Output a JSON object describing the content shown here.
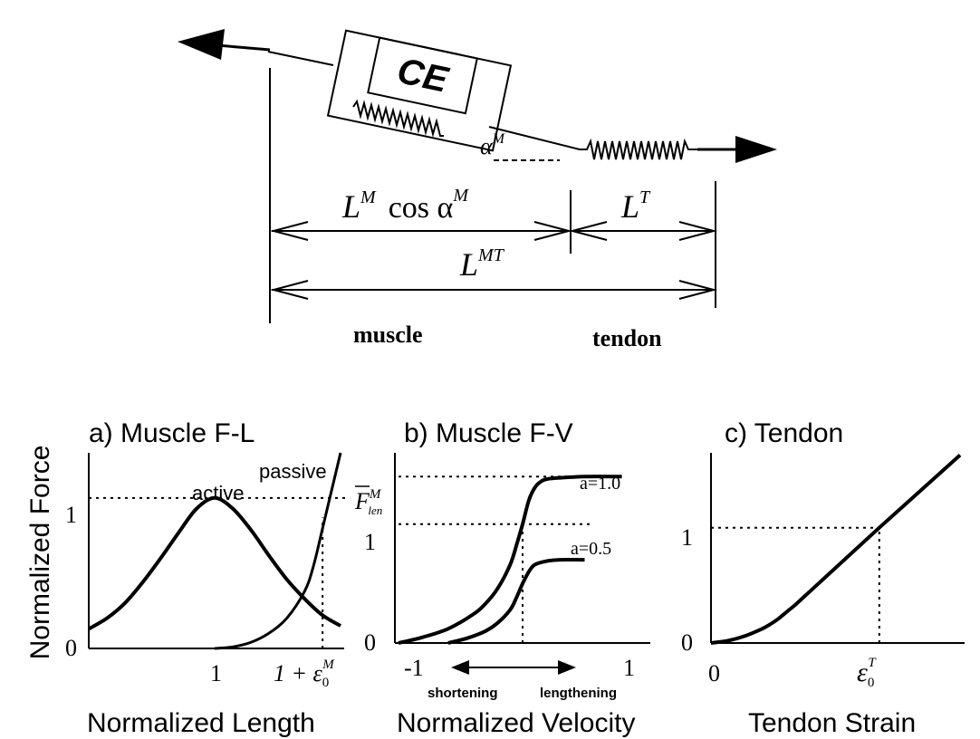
{
  "schematic": {
    "ce_label": "CE",
    "pennation_symbol": "α",
    "pennation_sup": "M",
    "fiber_length_label": "L",
    "fiber_length_sup": "M",
    "fiber_length_cos": "cos α",
    "fiber_length_cos_sup": "M",
    "tendon_length_label": "L",
    "tendon_length_sup": "T",
    "total_length_label": "L",
    "total_length_sup": "MT",
    "muscle_label": "muscle",
    "tendon_label": "tendon"
  },
  "panels": {
    "fl": {
      "title": "a) Muscle F-L",
      "ylabel": "Normalized Force",
      "xlabel": "Normalized Length",
      "ytick_0": "0",
      "ytick_1": "1",
      "xtick_1": "1",
      "xtick_eps_prefix": "1 + ε",
      "xtick_eps_sub": "0",
      "xtick_eps_sup": "M",
      "active_label": "active",
      "passive_label": "passive"
    },
    "fv": {
      "title": "b) Muscle F-V",
      "xlabel": "Normalized Velocity",
      "ytick_0": "0",
      "ytick_1": "1",
      "ytick_flen": "F",
      "ytick_flen_sup": "M",
      "ytick_flen_sub": "len",
      "xtick_neg1": "-1",
      "xtick_1": "1",
      "curve_a1": "a=1.0",
      "curve_a05": "a=0.5",
      "shortening": "shortening",
      "lengthening": "lengthening"
    },
    "tendon": {
      "title": "c) Tendon",
      "xlabel": "Tendon Strain",
      "ytick_0": "0",
      "ytick_1": "1",
      "xtick_0": "0",
      "xtick_eps": "ε",
      "xtick_eps_sub": "0",
      "xtick_eps_sup": "T"
    }
  },
  "chart_data": [
    {
      "type": "line",
      "title": "a) Muscle F-L",
      "xlabel": "Normalized Length",
      "ylabel": "Normalized Force",
      "xlim": [
        0.3,
        1.72
      ],
      "ylim": [
        0,
        1.3
      ],
      "ref_y": 1,
      "ref_x": 1.6,
      "series": [
        {
          "name": "active",
          "x": [
            0.3,
            0.4,
            0.5,
            0.6,
            0.7,
            0.8,
            0.9,
            1.0,
            1.1,
            1.2,
            1.3,
            1.4,
            1.5,
            1.6,
            1.7
          ],
          "y": [
            0.13,
            0.2,
            0.3,
            0.44,
            0.6,
            0.77,
            0.93,
            1.0,
            0.93,
            0.79,
            0.62,
            0.46,
            0.33,
            0.22,
            0.15
          ]
        },
        {
          "name": "passive",
          "x": [
            1.0,
            1.1,
            1.2,
            1.3,
            1.4,
            1.5,
            1.55,
            1.6,
            1.65,
            1.7
          ],
          "y": [
            0.0,
            0.01,
            0.04,
            0.1,
            0.2,
            0.38,
            0.55,
            0.8,
            1.05,
            1.3
          ]
        }
      ]
    },
    {
      "type": "line",
      "title": "b) Muscle F-V",
      "xlabel": "Normalized Velocity",
      "xlim": [
        -1,
        1
      ],
      "ylim": [
        0,
        1.6
      ],
      "ref_y": [
        1,
        1.4
      ],
      "ref_x": 0,
      "series": [
        {
          "name": "a=1.0",
          "x": [
            -1.0,
            -0.8,
            -0.6,
            -0.4,
            -0.3,
            -0.2,
            -0.1,
            -0.05,
            0.0,
            0.05,
            0.1,
            0.15,
            0.2,
            0.3,
            0.5,
            0.8
          ],
          "y": [
            0.0,
            0.05,
            0.12,
            0.24,
            0.33,
            0.46,
            0.66,
            0.82,
            1.0,
            1.2,
            1.31,
            1.36,
            1.38,
            1.39,
            1.4,
            1.4
          ]
        },
        {
          "name": "a=0.5",
          "x": [
            -0.6,
            -0.45,
            -0.3,
            -0.2,
            -0.1,
            -0.05,
            0.0,
            0.05,
            0.1,
            0.2,
            0.3,
            0.5
          ],
          "y": [
            0.0,
            0.04,
            0.1,
            0.17,
            0.28,
            0.38,
            0.5,
            0.6,
            0.66,
            0.69,
            0.7,
            0.7
          ]
        }
      ]
    },
    {
      "type": "line",
      "title": "c) Tendon",
      "xlabel": "Tendon Strain",
      "xlim": [
        0,
        1.48
      ],
      "ylim": [
        0,
        1.65
      ],
      "ref_y": 1,
      "ref_x": 1,
      "series": [
        {
          "x": [
            0.0,
            0.1,
            0.2,
            0.3,
            0.35,
            0.4,
            0.45,
            0.5,
            1.0,
            1.48
          ],
          "y": [
            0.0,
            0.02,
            0.06,
            0.12,
            0.16,
            0.21,
            0.27,
            0.33,
            1.0,
            1.63
          ]
        }
      ]
    }
  ]
}
